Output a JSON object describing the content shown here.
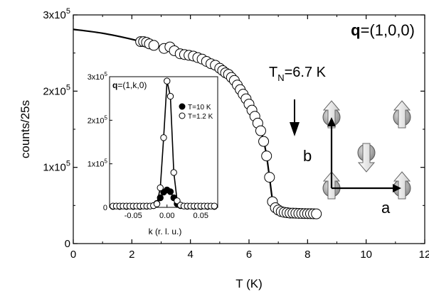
{
  "chart_data": [
    {
      "type": "scatter",
      "xlabel": "T (K)",
      "ylabel": "counts/25s",
      "xlim": [
        0,
        12
      ],
      "ylim": [
        0,
        300000
      ],
      "xticks": [
        0,
        2,
        4,
        6,
        8,
        10,
        12
      ],
      "xtick_labels": [
        "0",
        "2",
        "4",
        "6",
        "8",
        "10",
        "12"
      ],
      "yticks": [
        0,
        100000,
        200000,
        300000
      ],
      "ytick_labels": [
        {
          "base": "0",
          "exp": ""
        },
        {
          "base": "1x10",
          "exp": "5"
        },
        {
          "base": "2x10",
          "exp": "5"
        },
        {
          "base": "3x10",
          "exp": "5"
        }
      ],
      "wavevector_label": {
        "bold": "q",
        "rest": "=(1,0,0)"
      },
      "transition_label": {
        "main": "T",
        "sub": "N",
        "rest": "=6.7 K"
      },
      "data_points": {
        "x": [
          2.3,
          2.4,
          2.5,
          2.6,
          2.75,
          3.1,
          3.3,
          3.45,
          3.65,
          3.8,
          3.95,
          4.1,
          4.25,
          4.4,
          4.55,
          4.7,
          4.85,
          5.0,
          5.1,
          5.2,
          5.3,
          5.4,
          5.5,
          5.6,
          5.7,
          5.8,
          5.9,
          6.0,
          6.1,
          6.2,
          6.3,
          6.4,
          6.5,
          6.6,
          6.7,
          6.8,
          6.9,
          7.0,
          7.1,
          7.2,
          7.3,
          7.4,
          7.5,
          7.6,
          7.7,
          7.8,
          7.9,
          8.0,
          8.1,
          8.2,
          8.3
        ],
        "y": [
          265000,
          265000,
          264000,
          262000,
          260000,
          256000,
          258000,
          253000,
          249000,
          248000,
          247000,
          246000,
          244000,
          242000,
          239000,
          236000,
          234000,
          230000,
          227000,
          224000,
          222000,
          218000,
          214000,
          208000,
          202000,
          196000,
          190000,
          183000,
          175000,
          167000,
          158000,
          148000,
          134000,
          115000,
          87000,
          55000,
          47000,
          44000,
          42000,
          41000,
          40500,
          40000,
          40000,
          39800,
          39600,
          39500,
          39400,
          39300,
          39200,
          39100,
          39000
        ]
      },
      "fit_curve": {
        "x": [
          0.0,
          1.0,
          2.0,
          3.0,
          4.0,
          4.5,
          5.0,
          5.5,
          6.0,
          6.2,
          6.4,
          6.5,
          6.6,
          6.7,
          6.8,
          6.9,
          7.0,
          7.2,
          7.5,
          8.0,
          8.3
        ],
        "y": [
          281000,
          276000,
          268000,
          258000,
          246000,
          239000,
          230000,
          215000,
          184000,
          167000,
          147000,
          135000,
          115000,
          87000,
          58000,
          48000,
          44000,
          41500,
          40000,
          39300,
          39000
        ]
      },
      "annotations": [
        "arrow at T=6.9 K pointing down to transition"
      ],
      "magnetic_structure": {
        "axis_labels": [
          "a",
          "b"
        ],
        "spins": [
          {
            "direction": "up"
          },
          {
            "direction": "up"
          },
          {
            "direction": "down"
          },
          {
            "direction": "up"
          },
          {
            "direction": "up"
          }
        ]
      }
    },
    {
      "type": "scatter",
      "xlabel": "k (r. l. u.)",
      "ylabel": "",
      "xlim": [
        -0.085,
        0.075
      ],
      "ylim": [
        0,
        300000
      ],
      "xticks": [
        -0.05,
        0.0,
        0.05
      ],
      "xtick_labels": [
        "-0.05",
        "0.00",
        "0.05"
      ],
      "yticks": [
        0,
        100000,
        200000,
        300000
      ],
      "ytick_labels": [
        {
          "base": "0",
          "exp": ""
        },
        {
          "base": "1x10",
          "exp": "5"
        },
        {
          "base": "2x10",
          "exp": "5"
        },
        {
          "base": "3x10",
          "exp": "5"
        }
      ],
      "wavevector_label": {
        "bold": "q",
        "rest": "=(1,k,0)"
      },
      "legend_position": "top-right",
      "series": [
        {
          "name": "T=10 K",
          "marker": "filled",
          "x": [
            -0.08,
            -0.07,
            -0.06,
            -0.05,
            -0.04,
            -0.03,
            -0.02,
            -0.015,
            -0.01,
            -0.005,
            0.0,
            0.005,
            0.01,
            0.015,
            0.02,
            0.03,
            0.04,
            0.05,
            0.06,
            0.07
          ],
          "y": [
            2000,
            2000,
            2000,
            2000,
            2000,
            2500,
            4000,
            9000,
            22000,
            35000,
            40000,
            36000,
            22000,
            8000,
            4000,
            2500,
            2000,
            2000,
            2000,
            2000
          ]
        },
        {
          "name": "T=1.2 K",
          "marker": "open",
          "x": [
            -0.08,
            -0.075,
            -0.07,
            -0.065,
            -0.06,
            -0.055,
            -0.05,
            -0.045,
            -0.04,
            -0.035,
            -0.03,
            -0.025,
            -0.02,
            -0.015,
            -0.01,
            -0.005,
            0.0,
            0.005,
            0.01,
            0.015,
            0.02,
            0.025,
            0.03,
            0.035,
            0.04,
            0.045,
            0.05,
            0.055,
            0.06,
            0.065,
            0.07
          ],
          "y": [
            3000,
            3000,
            3000,
            3000,
            3000,
            3000,
            3000,
            3000,
            3000,
            3000,
            3000,
            3000,
            4000,
            8000,
            45000,
            160000,
            290000,
            255000,
            80000,
            15000,
            5000,
            3000,
            3000,
            3000,
            3000,
            3000,
            3000,
            3000,
            3000,
            3000,
            3000
          ]
        }
      ]
    }
  ]
}
